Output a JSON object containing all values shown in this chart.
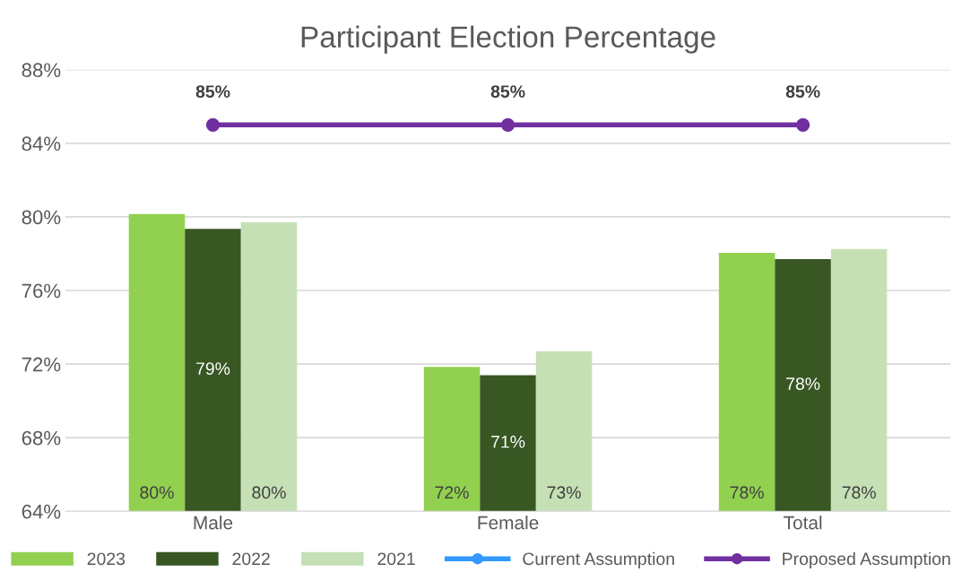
{
  "chart_data": {
    "type": "bar",
    "title": "Participant Election Percentage",
    "categories": [
      "Male",
      "Female",
      "Total"
    ],
    "series": [
      {
        "name": "2023",
        "color": "#92d050",
        "values": [
          80.15,
          71.85,
          78.05
        ],
        "value_labels": [
          "80%",
          "72%",
          "78%"
        ]
      },
      {
        "name": "2022",
        "color": "#385723",
        "values": [
          79.35,
          71.4,
          77.7
        ],
        "value_labels": [
          "79%",
          "71%",
          "78%"
        ]
      },
      {
        "name": "2021",
        "color": "#c5e0b4",
        "values": [
          79.7,
          72.7,
          78.25
        ],
        "value_labels": [
          "80%",
          "73%",
          "78%"
        ]
      },
      {
        "name": "Current Assumption",
        "type": "line",
        "color": "#3399ff",
        "values": [
          null,
          null,
          null
        ],
        "marker": "circle"
      },
      {
        "name": "Proposed Assumption",
        "type": "line",
        "color": "#7030a0",
        "values": [
          85,
          85,
          85
        ],
        "marker": "circle",
        "value_labels": [
          "85%",
          "85%",
          "85%"
        ]
      }
    ],
    "ylim": [
      64,
      88
    ],
    "yticks": [
      {
        "value": 64,
        "label": "64%"
      },
      {
        "value": 68,
        "label": "68%"
      },
      {
        "value": 72,
        "label": "72%"
      },
      {
        "value": 76,
        "label": "76%"
      },
      {
        "value": 80,
        "label": "80%"
      },
      {
        "value": 84,
        "label": "84%"
      },
      {
        "value": 88,
        "label": "88%"
      }
    ],
    "grid": "y",
    "legend": "bottom"
  }
}
